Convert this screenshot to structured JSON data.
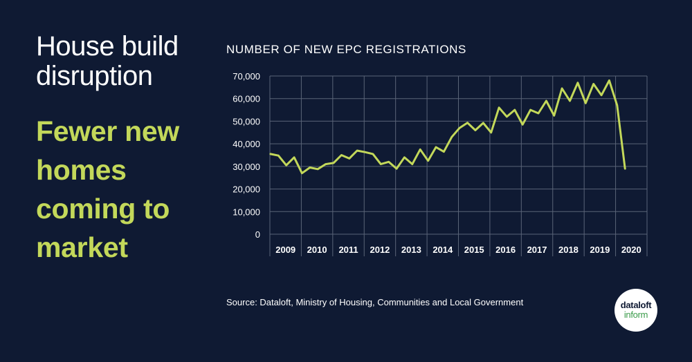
{
  "headline": {
    "line1": "House build",
    "line2": "disruption"
  },
  "subhead": {
    "line1": "Fewer new",
    "line2": "homes",
    "line3": "coming to",
    "line4": "market"
  },
  "source": "Source:  Dataloft, Ministry of Housing, Communities and Local Government",
  "logo": {
    "line1": "dataloft",
    "line2": "inform"
  },
  "colors": {
    "background": "#0f1a33",
    "line": "#c3d85a",
    "text": "#ffffff",
    "grid": "#5a6478"
  },
  "chart_data": {
    "type": "line",
    "title": "NUMBER OF NEW EPC REGISTRATIONS",
    "xlabel": "",
    "ylabel": "",
    "ylim": [
      0,
      70000
    ],
    "y_ticks": [
      0,
      10000,
      20000,
      30000,
      40000,
      50000,
      60000,
      70000
    ],
    "y_tick_labels": [
      "0",
      "10,000",
      "20,000",
      "30,000",
      "40,000",
      "50,000",
      "60,000",
      "70,000"
    ],
    "x_tick_labels": [
      "2009",
      "2010",
      "2011",
      "2012",
      "2013",
      "2014",
      "2015",
      "2016",
      "2017",
      "2018",
      "2019",
      "2020"
    ],
    "grid": true,
    "legend": "none",
    "series": [
      {
        "values": [
          35500,
          34800,
          30500,
          34000,
          27000,
          29500,
          28800,
          31000,
          31500,
          35000,
          33500,
          37000,
          36300,
          35500,
          31000,
          32000,
          29000,
          34000,
          31000,
          37500,
          32500,
          38500,
          36500,
          43000,
          47000,
          49300,
          46000,
          49200,
          45000,
          56000,
          52000,
          55000,
          48500,
          55000,
          53500,
          59000,
          52500,
          64500,
          59000,
          67000,
          58000,
          66500,
          61500,
          68000,
          57000,
          29000
        ]
      }
    ]
  }
}
